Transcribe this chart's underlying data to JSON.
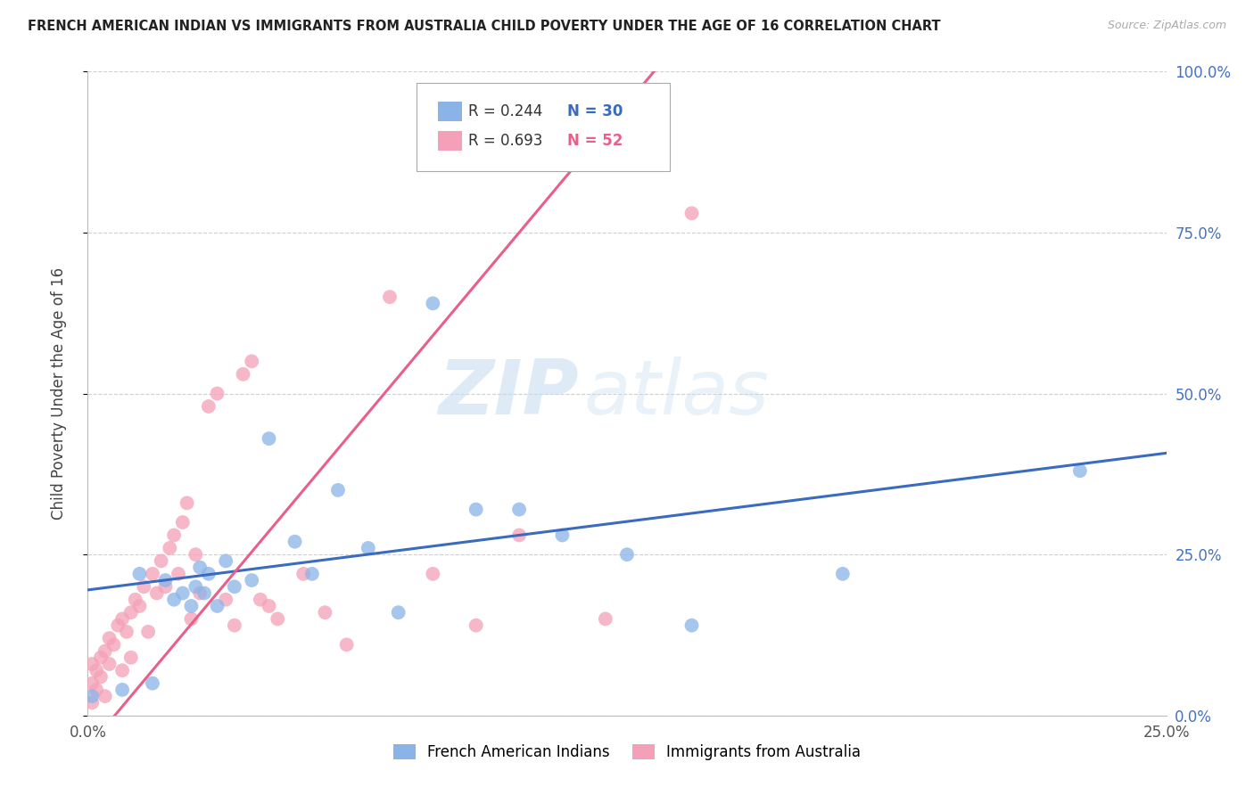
{
  "title": "FRENCH AMERICAN INDIAN VS IMMIGRANTS FROM AUSTRALIA CHILD POVERTY UNDER THE AGE OF 16 CORRELATION CHART",
  "source": "Source: ZipAtlas.com",
  "ylabel": "Child Poverty Under the Age of 16",
  "watermark_zip": "ZIP",
  "watermark_atlas": "atlas",
  "legend_blue_r": "R = 0.244",
  "legend_blue_n": "N = 30",
  "legend_pink_r": "R = 0.693",
  "legend_pink_n": "N = 52",
  "blue_color": "#8ab4e8",
  "pink_color": "#f4a0b8",
  "blue_line_color": "#3a6bbf",
  "pink_line_color": "#e8608a",
  "grid_color": "#d0d0d0",
  "background_color": "#ffffff",
  "blue_scatter_x": [
    0.001,
    0.008,
    0.012,
    0.015,
    0.018,
    0.02,
    0.022,
    0.024,
    0.025,
    0.026,
    0.027,
    0.028,
    0.03,
    0.032,
    0.034,
    0.038,
    0.042,
    0.048,
    0.052,
    0.058,
    0.065,
    0.072,
    0.08,
    0.09,
    0.1,
    0.11,
    0.125,
    0.14,
    0.175,
    0.23
  ],
  "blue_scatter_y": [
    0.03,
    0.04,
    0.22,
    0.05,
    0.21,
    0.18,
    0.19,
    0.17,
    0.2,
    0.23,
    0.19,
    0.22,
    0.17,
    0.24,
    0.2,
    0.21,
    0.43,
    0.27,
    0.22,
    0.35,
    0.26,
    0.16,
    0.64,
    0.32,
    0.32,
    0.28,
    0.25,
    0.14,
    0.22,
    0.38
  ],
  "pink_scatter_x": [
    0.001,
    0.001,
    0.001,
    0.002,
    0.002,
    0.003,
    0.003,
    0.004,
    0.004,
    0.005,
    0.005,
    0.006,
    0.007,
    0.008,
    0.008,
    0.009,
    0.01,
    0.01,
    0.011,
    0.012,
    0.013,
    0.014,
    0.015,
    0.016,
    0.017,
    0.018,
    0.019,
    0.02,
    0.021,
    0.022,
    0.023,
    0.024,
    0.025,
    0.026,
    0.028,
    0.03,
    0.032,
    0.034,
    0.036,
    0.038,
    0.04,
    0.042,
    0.044,
    0.05,
    0.055,
    0.06,
    0.07,
    0.08,
    0.09,
    0.1,
    0.12,
    0.14
  ],
  "pink_scatter_y": [
    0.02,
    0.05,
    0.08,
    0.04,
    0.07,
    0.06,
    0.09,
    0.03,
    0.1,
    0.08,
    0.12,
    0.11,
    0.14,
    0.07,
    0.15,
    0.13,
    0.09,
    0.16,
    0.18,
    0.17,
    0.2,
    0.13,
    0.22,
    0.19,
    0.24,
    0.2,
    0.26,
    0.28,
    0.22,
    0.3,
    0.33,
    0.15,
    0.25,
    0.19,
    0.48,
    0.5,
    0.18,
    0.14,
    0.53,
    0.55,
    0.18,
    0.17,
    0.15,
    0.22,
    0.16,
    0.11,
    0.65,
    0.22,
    0.14,
    0.28,
    0.15,
    0.78
  ]
}
